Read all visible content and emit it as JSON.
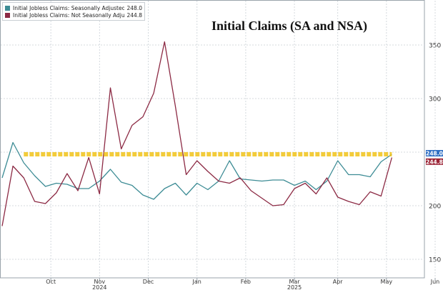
{
  "colors": {
    "sa_line": "#3d8c95",
    "nsa_line": "#8c2a44",
    "highlight": "#f2c418",
    "grid": "#d4d9de",
    "sa_tag_bg": "#2f6fc4",
    "nsa_tag_bg": "#9b2335"
  },
  "chart_data": {
    "type": "line",
    "title": "Initial Claims (SA and NSA)",
    "xlabel": "",
    "ylabel": "",
    "ylim": [
      135,
      395
    ],
    "yticks": [
      150,
      200,
      250,
      300,
      350
    ],
    "grid": true,
    "legend_placement": "top-left",
    "x_month_ticks": [
      {
        "label": "Oct",
        "x": 4.5
      },
      {
        "label": "Nov",
        "x": 9.0
      },
      {
        "label": "Dec",
        "x": 13.5
      },
      {
        "label": "Jan",
        "x": 18.0
      },
      {
        "label": "Feb",
        "x": 22.5
      },
      {
        "label": "Mar",
        "x": 27.0
      },
      {
        "label": "Apr",
        "x": 31.0
      },
      {
        "label": "May",
        "x": 35.5
      },
      {
        "label": "Jun",
        "x": 40.0
      }
    ],
    "x_year_ticks": [
      {
        "label": "2024",
        "x": 9.0
      },
      {
        "label": "2025",
        "x": 27.0
      }
    ],
    "series": [
      {
        "name": "Initial Jobless Claims: Seasonally Adjusted",
        "color_key": "sa_line",
        "last_value": "248.0",
        "values": [
          226,
          259,
          240,
          228,
          218,
          221,
          220,
          216,
          216,
          223,
          234,
          222,
          219,
          210,
          206,
          216,
          221,
          210,
          221,
          215,
          223,
          242,
          225,
          224,
          223,
          224,
          224,
          219,
          223,
          215,
          223,
          242,
          229,
          229,
          227,
          241,
          248
        ]
      },
      {
        "name": "Initial Jobless Claims: Not Seasonally Adjusted",
        "color_key": "nsa_line",
        "last_value": "244.8",
        "values": [
          181,
          237,
          226,
          204,
          202,
          212,
          230,
          214,
          245,
          211,
          310,
          253,
          275,
          283,
          305,
          353,
          293,
          229,
          242,
          232,
          223,
          221,
          226,
          214,
          207,
          200,
          201,
          216,
          221,
          211,
          226,
          208,
          204,
          201,
          213,
          209,
          245
        ]
      }
    ],
    "annotations": [
      {
        "type": "dashed-horizontal-line",
        "y": 248.0,
        "x_start": 2,
        "x_end": 36,
        "color_key": "highlight"
      }
    ],
    "value_tags": [
      {
        "value": 248.0,
        "label": "248.0",
        "color_key": "sa_tag_bg"
      },
      {
        "value": 244.8,
        "label": "244.8",
        "color_key": "nsa_tag_bg"
      }
    ]
  }
}
